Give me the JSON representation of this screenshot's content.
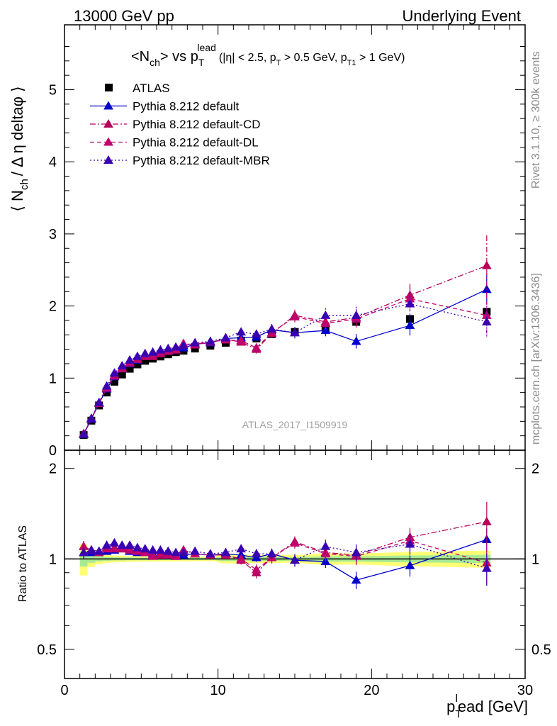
{
  "header": {
    "left": "13000 GeV pp",
    "right": "Underlying Event"
  },
  "side_labels": {
    "rivet": "Rivet 3.1.10, ≥ 300k events",
    "mcplots": "mcplots.cern.ch [arXiv:1306.3436]"
  },
  "chart_data": [
    {
      "type": "scatter",
      "title": "<N_ch> vs p_T^lead (|η| < 2.5, p_T > 0.5 GeV, p_T1 > 1 GeV)",
      "title_main": "<N",
      "title_main_sub": "ch",
      "title_vs": "> vs p",
      "title_pt_sup": "lead",
      "title_pt_sub": "T",
      "title_cuts_a": "(|η| < 2.5, p",
      "title_cuts_b": " > 0.5 GeV, p",
      "title_cuts_sub1": "T",
      "title_cuts_sub2": "T1",
      "title_cuts_c": " > 1 GeV)",
      "ylabel": "⟨ N_ch / Δη deltaφ ⟩",
      "ylabel_a": "⟨ N",
      "ylabel_sub": "ch",
      "ylabel_b": "/ Δ η deltaφ ⟩",
      "watermark": "ATLAS_2017_I1509919",
      "xlim": [
        0,
        30
      ],
      "ylim": [
        0,
        5.9
      ],
      "yticks": [
        0,
        1,
        2,
        3,
        4,
        5
      ],
      "ytick_labels": [
        "0",
        "1",
        "2",
        "3",
        "4",
        "5"
      ],
      "grid": false,
      "legend_position": "top-left",
      "colors": {
        "data": "#000000",
        "default": "#0000cc",
        "cd": "#b5005a",
        "dl": "#c0006e",
        "mbr": "#3a00b0"
      },
      "series": [
        {
          "name": "ATLAS",
          "style": "marker-square",
          "x": [
            1.25,
            1.75,
            2.25,
            2.75,
            3.25,
            3.75,
            4.25,
            4.75,
            5.25,
            5.75,
            6.25,
            6.75,
            7.25,
            7.75,
            8.5,
            9.5,
            10.5,
            11.5,
            12.5,
            13.5,
            15,
            17,
            19,
            22.5,
            27.5
          ],
          "y": [
            0.21,
            0.41,
            0.62,
            0.8,
            0.95,
            1.05,
            1.13,
            1.19,
            1.24,
            1.27,
            1.3,
            1.33,
            1.36,
            1.38,
            1.41,
            1.45,
            1.49,
            1.52,
            1.55,
            1.61,
            1.64,
            1.7,
            1.78,
            1.82,
            1.92
          ],
          "yerr": [
            0.01,
            0.01,
            0.01,
            0.01,
            0.01,
            0.01,
            0.01,
            0.01,
            0.01,
            0.01,
            0.01,
            0.01,
            0.01,
            0.01,
            0.01,
            0.01,
            0.02,
            0.02,
            0.02,
            0.02,
            0.02,
            0.03,
            0.03,
            0.04,
            0.05
          ]
        },
        {
          "name": "Pythia 8.212 default",
          "style": "solid",
          "x": [
            1.25,
            1.75,
            2.25,
            2.75,
            3.25,
            3.75,
            4.25,
            4.75,
            5.25,
            5.75,
            6.25,
            6.75,
            7.25,
            7.75,
            8.5,
            9.5,
            10.5,
            11.5,
            12.5,
            13.5,
            15,
            17,
            19,
            22.5,
            27.5
          ],
          "y": [
            0.22,
            0.43,
            0.65,
            0.85,
            1.02,
            1.13,
            1.2,
            1.25,
            1.3,
            1.32,
            1.35,
            1.37,
            1.39,
            1.42,
            1.47,
            1.49,
            1.55,
            1.56,
            1.57,
            1.67,
            1.63,
            1.66,
            1.51,
            1.73,
            2.23
          ],
          "yerr": [
            0.01,
            0.01,
            0.01,
            0.01,
            0.01,
            0.02,
            0.02,
            0.02,
            0.02,
            0.02,
            0.02,
            0.02,
            0.02,
            0.03,
            0.03,
            0.03,
            0.04,
            0.04,
            0.05,
            0.06,
            0.07,
            0.08,
            0.1,
            0.14,
            0.2
          ]
        },
        {
          "name": "Pythia 8.212 default-CD",
          "style": "dashdot",
          "x": [
            1.25,
            1.75,
            2.25,
            2.75,
            3.25,
            3.75,
            4.25,
            4.75,
            5.25,
            5.75,
            6.25,
            6.75,
            7.25,
            7.75,
            8.5,
            9.5,
            10.5,
            11.5,
            12.5,
            13.5,
            15,
            17,
            19,
            22.5,
            27.5
          ],
          "y": [
            0.23,
            0.44,
            0.66,
            0.87,
            1.04,
            1.13,
            1.22,
            1.27,
            1.31,
            1.31,
            1.35,
            1.38,
            1.4,
            1.47,
            1.47,
            1.5,
            1.54,
            1.5,
            1.4,
            1.62,
            1.87,
            1.78,
            1.84,
            2.15,
            2.56
          ],
          "yerr": [
            0.01,
            0.01,
            0.01,
            0.01,
            0.01,
            0.02,
            0.02,
            0.02,
            0.02,
            0.02,
            0.02,
            0.02,
            0.02,
            0.03,
            0.03,
            0.03,
            0.04,
            0.05,
            0.06,
            0.07,
            0.08,
            0.1,
            0.12,
            0.16,
            0.42
          ]
        },
        {
          "name": "Pythia 8.212 default-DL",
          "style": "dashed",
          "x": [
            1.25,
            1.75,
            2.25,
            2.75,
            3.25,
            3.75,
            4.25,
            4.75,
            5.25,
            5.75,
            6.25,
            6.75,
            7.25,
            7.75,
            8.5,
            9.5,
            10.5,
            11.5,
            12.5,
            13.5,
            15,
            17,
            19,
            22.5,
            27.5
          ],
          "y": [
            0.23,
            0.44,
            0.65,
            0.86,
            1.03,
            1.14,
            1.21,
            1.26,
            1.3,
            1.3,
            1.34,
            1.37,
            1.39,
            1.48,
            1.46,
            1.5,
            1.53,
            1.52,
            1.42,
            1.63,
            1.85,
            1.76,
            1.82,
            2.1,
            1.87
          ],
          "yerr": [
            0.01,
            0.01,
            0.01,
            0.01,
            0.01,
            0.02,
            0.02,
            0.02,
            0.02,
            0.02,
            0.02,
            0.02,
            0.02,
            0.03,
            0.03,
            0.03,
            0.04,
            0.05,
            0.06,
            0.07,
            0.08,
            0.1,
            0.12,
            0.16,
            0.3
          ]
        },
        {
          "name": "Pythia 8.212 default-MBR",
          "style": "dotted",
          "x": [
            1.25,
            1.75,
            2.25,
            2.75,
            3.25,
            3.75,
            4.25,
            4.75,
            5.25,
            5.75,
            6.25,
            6.75,
            7.25,
            7.75,
            8.5,
            9.5,
            10.5,
            11.5,
            12.5,
            13.5,
            15,
            17,
            19,
            22.5,
            27.5
          ],
          "y": [
            0.22,
            0.44,
            0.66,
            0.89,
            1.07,
            1.17,
            1.25,
            1.3,
            1.34,
            1.36,
            1.39,
            1.41,
            1.43,
            1.45,
            1.49,
            1.51,
            1.56,
            1.64,
            1.61,
            1.68,
            1.63,
            1.87,
            1.87,
            2.03,
            1.78
          ],
          "yerr": [
            0.01,
            0.01,
            0.01,
            0.01,
            0.01,
            0.02,
            0.02,
            0.02,
            0.02,
            0.02,
            0.02,
            0.02,
            0.02,
            0.03,
            0.03,
            0.03,
            0.04,
            0.05,
            0.06,
            0.07,
            0.08,
            0.1,
            0.12,
            0.16,
            0.22
          ]
        }
      ]
    },
    {
      "type": "scatter",
      "ylabel": "Ratio to ATLAS",
      "xlabel": "p_T^lead [GeV]",
      "xlabel_a": "p",
      "xlabel_sup": "l",
      "xlabel_sub": "T",
      "xlabel_b": "ead [GeV]",
      "xlim": [
        0,
        30
      ],
      "ylim": [
        0.4,
        2.3
      ],
      "xticks": [
        0,
        10,
        20,
        30
      ],
      "xtick_labels": [
        "0",
        "10",
        "20",
        "30"
      ],
      "yticks": [
        0.5,
        1,
        2
      ],
      "ytick_labels": [
        "0.5",
        "1",
        "2"
      ],
      "scale": "log",
      "grid": false,
      "series": [
        {
          "name": "Pythia 8.212 default",
          "y": [
            1.05,
            1.05,
            1.05,
            1.06,
            1.07,
            1.08,
            1.06,
            1.05,
            1.05,
            1.04,
            1.04,
            1.03,
            1.02,
            1.03,
            1.04,
            1.03,
            1.04,
            1.03,
            1.01,
            1.04,
            0.99,
            0.98,
            0.85,
            0.95,
            1.16
          ]
        },
        {
          "name": "Pythia 8.212 default-CD",
          "y": [
            1.1,
            1.07,
            1.06,
            1.09,
            1.09,
            1.08,
            1.08,
            1.07,
            1.06,
            1.03,
            1.04,
            1.04,
            1.03,
            1.07,
            1.04,
            1.03,
            1.03,
            0.99,
            0.9,
            1.01,
            1.14,
            1.05,
            1.03,
            1.18,
            1.33
          ]
        },
        {
          "name": "Pythia 8.212 default-DL",
          "y": [
            1.1,
            1.07,
            1.05,
            1.08,
            1.08,
            1.09,
            1.07,
            1.06,
            1.05,
            1.02,
            1.03,
            1.03,
            1.02,
            1.07,
            1.04,
            1.03,
            1.03,
            1.0,
            0.92,
            1.01,
            1.13,
            1.04,
            1.02,
            1.15,
            0.97
          ]
        },
        {
          "name": "Pythia 8.212 default-MBR",
          "y": [
            1.05,
            1.07,
            1.06,
            1.11,
            1.13,
            1.11,
            1.11,
            1.09,
            1.08,
            1.07,
            1.07,
            1.06,
            1.05,
            1.05,
            1.06,
            1.04,
            1.05,
            1.08,
            1.04,
            1.04,
            0.99,
            1.1,
            1.05,
            1.12,
            0.93
          ]
        }
      ]
    }
  ]
}
